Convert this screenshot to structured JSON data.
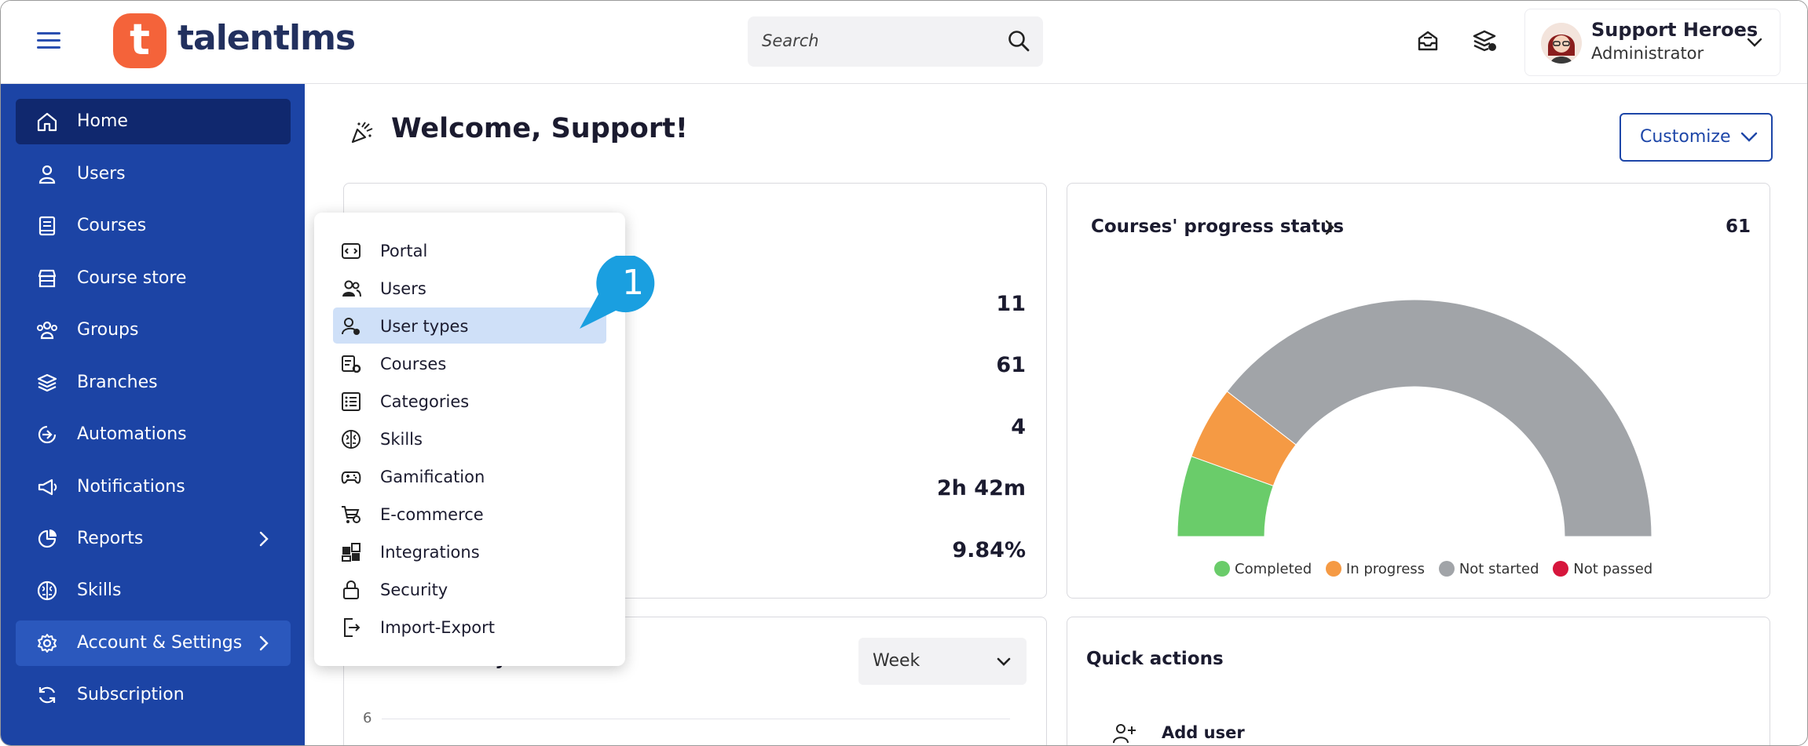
{
  "app": {
    "logo_text": "talentlms",
    "logo_mark": "t"
  },
  "search": {
    "placeholder": "Search"
  },
  "user": {
    "name": "Support Heroes",
    "role": "Administrator"
  },
  "sidebar": {
    "items": [
      {
        "label": "Home",
        "icon": "home-icon"
      },
      {
        "label": "Users",
        "icon": "user-icon"
      },
      {
        "label": "Courses",
        "icon": "book-icon"
      },
      {
        "label": "Course store",
        "icon": "store-icon"
      },
      {
        "label": "Groups",
        "icon": "groups-icon"
      },
      {
        "label": "Branches",
        "icon": "layers-icon"
      },
      {
        "label": "Automations",
        "icon": "automation-icon"
      },
      {
        "label": "Notifications",
        "icon": "megaphone-icon"
      },
      {
        "label": "Reports",
        "icon": "pie-icon"
      },
      {
        "label": "Skills",
        "icon": "brain-icon"
      },
      {
        "label": "Account & Settings",
        "icon": "gear-icon"
      },
      {
        "label": "Subscription",
        "icon": "refresh-icon"
      }
    ]
  },
  "main": {
    "welcome": "Welcome, Support!",
    "customize_label": "Customize",
    "stats": [
      "11",
      "61",
      "4",
      "2h 42m",
      "9.84%"
    ],
    "progress_card": {
      "title": "Courses' progress status",
      "count": "61"
    },
    "activity_card": {
      "title": "Portal activity",
      "period": "Week",
      "y_tick": "6"
    },
    "quick_actions": {
      "title": "Quick actions",
      "add_user": "Add user"
    }
  },
  "chart_data": {
    "type": "pie",
    "variant": "semi-donut",
    "labels": [
      "Completed",
      "In progress",
      "Not started",
      "Not passed"
    ],
    "values": [
      11,
      10,
      79,
      0
    ],
    "colors": [
      "#6acc6a",
      "#f59a44",
      "#a1a4a8",
      "#d6163c"
    ],
    "legend_position": "bottom"
  },
  "menu": {
    "items": [
      {
        "label": "Portal"
      },
      {
        "label": "Users"
      },
      {
        "label": "User types"
      },
      {
        "label": "Courses"
      },
      {
        "label": "Categories"
      },
      {
        "label": "Skills"
      },
      {
        "label": "Gamification"
      },
      {
        "label": "E-commerce"
      },
      {
        "label": "Integrations"
      },
      {
        "label": "Security"
      },
      {
        "label": "Import-Export"
      }
    ],
    "selected": "User types"
  },
  "callout": {
    "number": "1",
    "color": "#1a9fe0"
  },
  "colors": {
    "sidebar": "#1c44a5",
    "sidebar_active": "#10286e",
    "accent": "#1d46a8",
    "logo": "#f4633a"
  }
}
